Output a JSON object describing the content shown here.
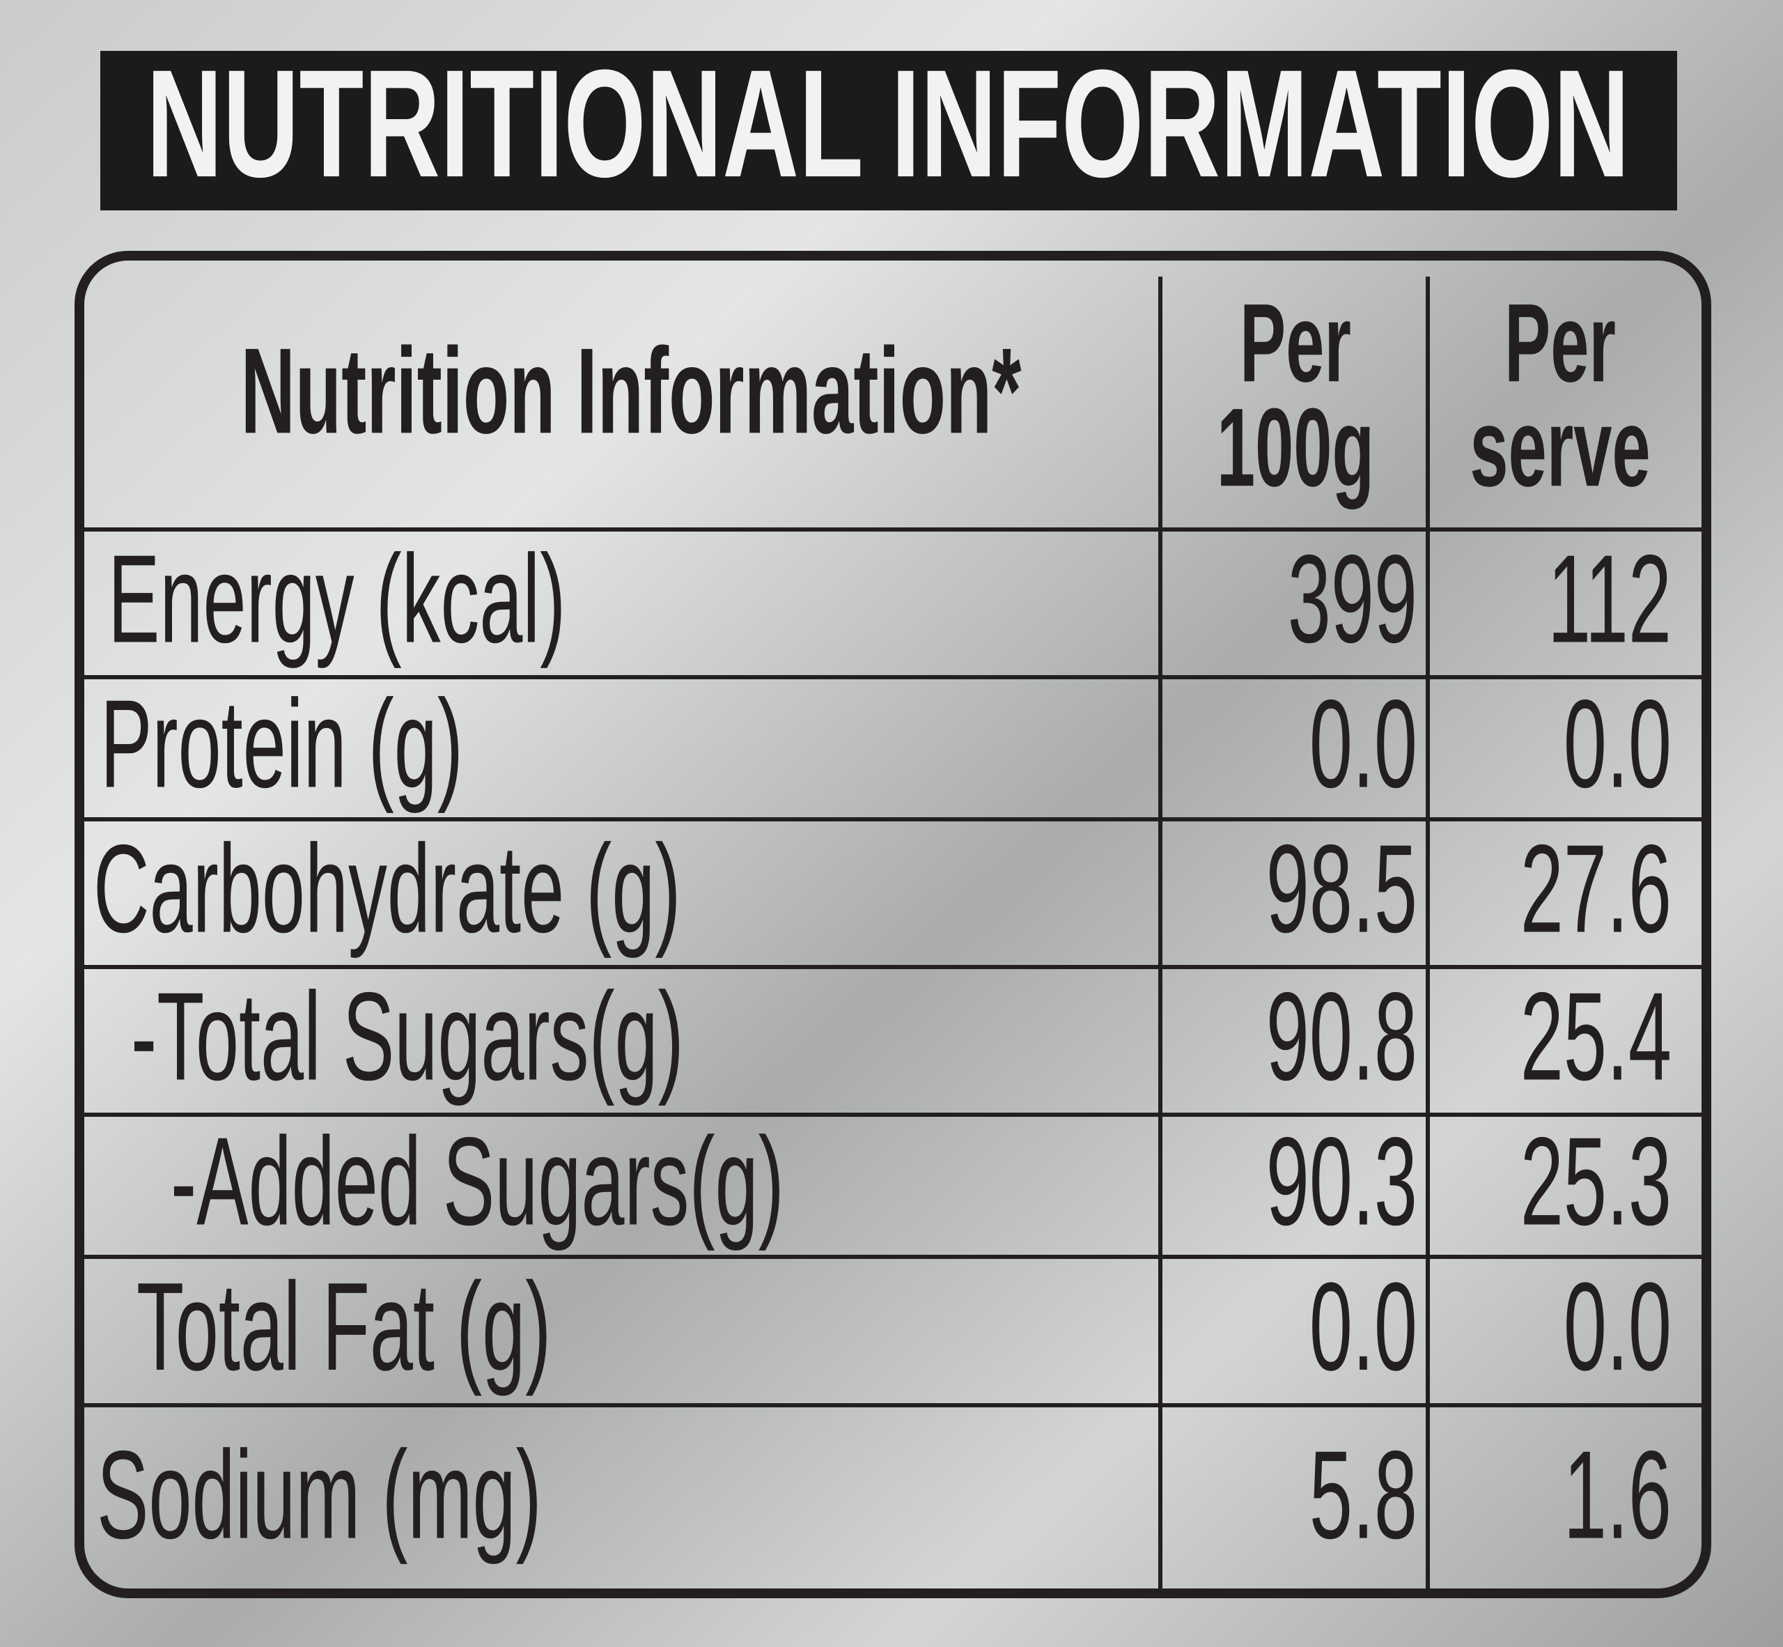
{
  "header": {
    "title": "NUTRITIONAL INFORMATION"
  },
  "table": {
    "headers": [
      "Nutrition Information*",
      [
        "Per",
        "100g"
      ],
      [
        "Per",
        "serve"
      ]
    ],
    "rows": [
      [
        "Energy (kcal)",
        "399",
        "112"
      ],
      [
        "Protein (g)",
        "0.0",
        "0.0"
      ],
      [
        "Carbohydrate (g)",
        "98.5",
        "27.6"
      ],
      [
        "-Total Sugars(g)",
        "90.8",
        "25.4"
      ],
      [
        "-Added Sugars(g)",
        "90.3",
        "25.3"
      ],
      [
        "Total Fat (g)",
        "0.0",
        "0.0"
      ],
      [
        "Sodium (mg)",
        "5.8",
        "1.6"
      ]
    ]
  }
}
